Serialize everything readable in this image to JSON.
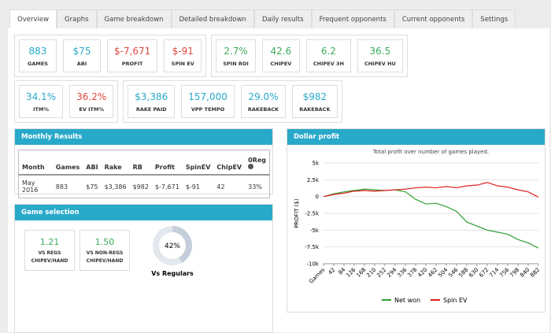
{
  "tabs": [
    "Overview",
    "Graphs",
    "Game breakdown",
    "Detailed breakdown",
    "Daily results",
    "Frequent opponents",
    "Current opponents",
    "Settings"
  ],
  "stats": {
    "groups": [
      [
        {
          "value": "883",
          "label": "GAMES",
          "color": "#29a9c9"
        },
        {
          "value": "$75",
          "label": "ABI",
          "color": "#29a9c9"
        },
        {
          "value": "$-7,671",
          "label": "PROFIT",
          "color": "#e0463f"
        },
        {
          "value": "$-91",
          "label": "SPIN EV",
          "color": "#e0463f"
        }
      ],
      [
        {
          "value": "2.7%",
          "label": "SPIN ROI",
          "color": "#3cad5a"
        },
        {
          "value": "42.6",
          "label": "CHIPEV",
          "color": "#3cad5a"
        },
        {
          "value": "6.2",
          "label": "CHIPEV 3H",
          "color": "#3cad5a"
        },
        {
          "value": "36.5",
          "label": "CHIPEV HU",
          "color": "#3cad5a"
        }
      ],
      [
        {
          "value": "34.1%",
          "label": "ITM%",
          "color": "#29a9c9"
        },
        {
          "value": "36.2%",
          "label": "EV ITM%",
          "color": "#e0463f"
        }
      ],
      [
        {
          "value": "$3,386",
          "label": "RAKE PAID",
          "color": "#29a9c9"
        },
        {
          "value": "157,000",
          "label": "VPP TEMPO",
          "color": "#29a9c9"
        },
        {
          "value": "29.0%",
          "label": "RAKEBACK",
          "color": "#29a9c9"
        },
        {
          "value": "$982",
          "label": "RAKEBACK",
          "color": "#29a9c9"
        }
      ]
    ]
  },
  "monthly_results": {
    "title": "Monthly Results",
    "columns": [
      "Month",
      "Games",
      "ABI",
      "Rake",
      "RB",
      "Profit",
      "SpinEV",
      "ChipEV",
      "0Reg"
    ],
    "rows": [
      [
        "May 2016",
        "883",
        "$75",
        "$3,386",
        "$982",
        "$-7,671",
        "$-91",
        "42",
        "33%"
      ]
    ]
  },
  "game_selection": {
    "title": "Game selection",
    "cards": [
      {
        "value": "1.21",
        "label": "VS REGS",
        "sublabel": "CHIPEV/HAND",
        "color": "#3cad5a"
      },
      {
        "value": "1.50",
        "label": "VS NON-REGS",
        "sublabel": "CHIPEV/HAND",
        "color": "#3cad5a"
      }
    ],
    "donut": {
      "value": 42,
      "value_label": "42%",
      "caption": "Vs Regulars",
      "color": "#c5cedb"
    }
  },
  "chart_data": {
    "type": "line",
    "title": "Dollar profit",
    "subtitle": "Total profit over number of games played.",
    "ylabel": "PROFIT ($)",
    "x": [
      0,
      42,
      84,
      126,
      168,
      210,
      252,
      294,
      336,
      378,
      420,
      462,
      504,
      546,
      588,
      630,
      672,
      714,
      756,
      798,
      840,
      882
    ],
    "xlim": [
      0,
      882
    ],
    "xticks": [
      {
        "value": 0,
        "label": "Games"
      },
      42,
      84,
      126,
      168,
      210,
      252,
      294,
      336,
      378,
      420,
      462,
      504,
      546,
      588,
      630,
      672,
      714,
      756,
      798,
      840,
      882
    ],
    "ylim": [
      -10000,
      5000
    ],
    "yticks": [
      {
        "value": -10000,
        "label": "-10k"
      },
      {
        "value": -7500,
        "label": "-7.5k"
      },
      {
        "value": -5000,
        "label": "-5k"
      },
      {
        "value": -2500,
        "label": "-2.5k"
      },
      0,
      {
        "value": 2500,
        "label": "2.5k"
      },
      {
        "value": 5000,
        "label": "5k"
      }
    ],
    "grid": true,
    "legend": "bottom",
    "series": [
      {
        "name": "Net won",
        "color": "#2e9e2e",
        "values": [
          0,
          400,
          700,
          900,
          1100,
          1000,
          900,
          1000,
          700,
          -400,
          -1100,
          -1000,
          -1500,
          -2200,
          -3800,
          -4400,
          -5000,
          -5300,
          -5600,
          -6400,
          -6900,
          -7671
        ]
      },
      {
        "name": "Spin EV",
        "color": "#e02020",
        "values": [
          0,
          300,
          500,
          800,
          900,
          800,
          900,
          1000,
          1100,
          1300,
          1400,
          1300,
          1500,
          1300,
          1600,
          1700,
          2100,
          1600,
          1400,
          1000,
          700,
          -91
        ]
      }
    ]
  }
}
